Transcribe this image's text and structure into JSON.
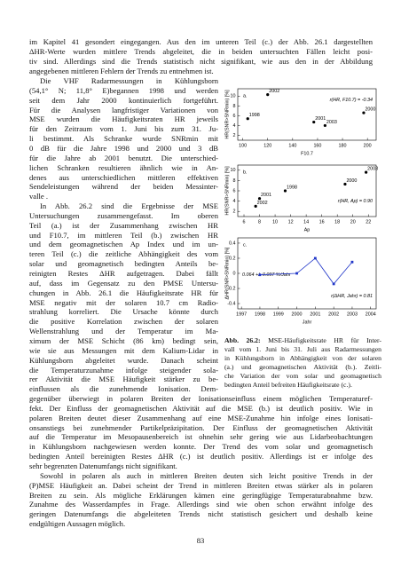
{
  "text": {
    "top": [
      [
        "im Kapitel 41 gesondert eingegangen. Aus den im unteren Teil (c.) der Abb. 26.1 dargestellten",
        "ΔHR-Werte wurden mittlere Trends abgeleitet, die in beiden untersuchten Fällen leicht posi-",
        "tiv sind. Allerdings sind die Trends statistisch nicht signifikant, wie aus den in der Abbildung",
        "angegebenen mittleren Fehlern der Trends zu entnehmen ist."
      ]
    ],
    "left": [
      [
        "Die VHF Radarmessungen in Kühlungsborn",
        "(54,1° N; 11,8° E)begannen 1998 und werden",
        "seit dem Jahr 2000 kontinuierlich fortgeführt.",
        "Für die Analysen langfristiger Variationen von",
        "MSE wurden die Häufigkeitsraten HR jeweils",
        "für den Zeitraum vom 1. Juni bis zum 31. Ju-",
        "li bestimmt. Als Schranke wurde SNRmin mit",
        "0 dB für die Jahre 1998 und 2000 und 3 dB",
        "für die Jahre ab 2001 benutzt. Die unterschied-",
        "lichen Schranken resultieren ähnlich wie in An-",
        "denes aus unterschiedlichen mittleren effektiven",
        "Sendeleistungen während der beiden Messinter-",
        "valle ."
      ],
      [
        "In Abb. 26.2 sind die Ergebnisse der MSE",
        "Untersuchungen zusammengefasst. Im oberen",
        "Teil (a.) ist der Zusammenhang zwischen HR",
        "und F10.7, im mittleren Teil (b.) zwischen HR",
        "und dem geomagnetischen Ap Index und im un-",
        "teren Teil (c.) die zeitliche Abhängigkeit des vom",
        "solar und geomagnetisch bedingten Anteils be-",
        "reinigten Restes ΔHR aufgetragen. Dabei fällt",
        "auf, dass im Gegensatz zu den PMSE Untersu-",
        "chungen in Abb. 26.1 die Häufigkeitsrate HR für",
        "MSE negativ mit der solaren 10.7 cm Radio-",
        "strahlung korreliert. Die Ursache könnte durch",
        "die positive Korrelation zwischen der solaren",
        "Wellenstrahlung und der Temperatur im Ma-",
        "ximum der MSE Schicht (86 km) bedingt sein,",
        "wie sie aus Messungen mit dem Kalium-Lidar in",
        "Kühlungsborn abgeleitet wurde. Danach scheint",
        "die Temperaturzunahme infolge steigender sola-",
        "rer Aktivität die MSE Häufigkeit stärker zu be-",
        "einflussen als die zunehmende Ionisation. Dem-"
      ]
    ],
    "bottom": [
      [
        "gegenüber überwiegt in polaren Breiten der Ionisationseinfluss einem möglichen Temperaturef-",
        "fekt. Der Einfluss der geomagnetischen Aktivität auf die MSE (b.) ist deutlich positiv. Wie in",
        "polaren Breiten deutet dieser Zusammenhang auf eine MSE-Zunahme hin infolge eines Ionisati-",
        "onsanstiegs bei zunehmender Partikelpräzipitation. Der Einfluss der geomagnetischen Aktivität",
        "auf die Temperatur im Mesopausenbereich ist ohnehin sehr gering wie aus Lidarbeobachtungen",
        "in Kühlungsborn nachgewiesen werden konnte. Der Trend des vom solar und geomagnetisch",
        "bedingten Anteil bereinigten Restes ΔHR (c.) ist deutlich positiv. Allerdings ist er infolge des",
        "sehr begrenzten Datenumfangs nicht signifikant."
      ],
      [
        "Sowohl in polaren als auch in mittleren Breiten deuten sich leicht positive Trends in der",
        "(P)MSE Häufigkeit an. Dabei scheint der Trend in mittleren Breiten etwas stärker als in polaren",
        "Breiten zu sein. Als mögliche Erklärungen kämen eine geringfügige Temperaturabnahme bzw.",
        "Zunahme des Wasserdampfes in Frage. Allerdings sind wie oben schon erwähnt infolge des",
        "geringen Datenumfangs die abgeleiteten Trends nicht statistisch gesichert und deshalb keine",
        "endgültigen Aussagen möglich."
      ]
    ]
  },
  "figure": {
    "charts": [
      {
        "type": "scatter",
        "panel": "a.",
        "ylabel": "HR(SNR>SNRmin) [%]",
        "xlabel": "F10.7",
        "annotations": [
          {
            "text": "r(HR, F10.7) = -0.34",
            "color": "#000000"
          }
        ],
        "x": [
          104,
          120,
          157,
          166,
          197
        ],
        "values": [
          5.4,
          10.3,
          4.7,
          4.0,
          6.6
        ],
        "point_labels": [
          "1998",
          "2002",
          "2001",
          "2003",
          "2000"
        ],
        "color": "#000000",
        "xlim": [
          96,
          207
        ],
        "xticks": [
          100,
          120,
          140,
          160,
          180,
          200
        ],
        "ylim": [
          1,
          11.5
        ],
        "yticks": [
          2,
          4,
          6,
          8,
          10
        ]
      },
      {
        "type": "scatter",
        "panel": "b.",
        "ylabel": "HR(SNR>SNRmin) [%]",
        "xlabel": "Ap",
        "annotations": [
          {
            "text": "r(HR, Ap) = 0.90",
            "color": "#000000"
          }
        ],
        "x": [
          21.7,
          19,
          11.3,
          8,
          7.5
        ],
        "values": [
          9.6,
          7.3,
          6,
          4.5,
          3
        ],
        "point_labels": [
          "2003",
          "2000",
          "1998",
          "2001",
          "2002"
        ],
        "color": "#000000",
        "xlim": [
          5.2,
          23
        ],
        "xticks": [
          6,
          8,
          10,
          12,
          14,
          16,
          18,
          20,
          22
        ],
        "ylim": [
          1,
          11
        ],
        "yticks": [
          2,
          4,
          6,
          8,
          10
        ]
      },
      {
        "type": "line",
        "panel": "c.",
        "ylabel": "ΔHR(SNR>SNRmin) [%]",
        "xlabel": "Jahr",
        "annotations": [
          {
            "text": "0.064 +/- 0.097 %/Jahr",
            "color": "#1f35c8"
          },
          {
            "text": "r(ΔHR, Jahr) = 0.81",
            "color": "#000000"
          }
        ],
        "x": [
          1998,
          2000,
          2001,
          2002,
          2003
        ],
        "values": [
          -0.02,
          0.0,
          0.2,
          -0.14,
          0.15
        ],
        "color": "#1f35c8",
        "xlim": [
          1996.8,
          2004.3
        ],
        "xticks": [
          1997,
          1998,
          1999,
          2000,
          2001,
          2002,
          2003,
          2004
        ],
        "ylim": [
          -0.47,
          0.47
        ],
        "yticks": [
          0.4,
          0.2,
          0,
          -0.2,
          -0.4
        ]
      }
    ],
    "caption_label": "Abb. 26.2:",
    "caption": [
      "MSE-Häufigkeitsrate HR für Inter-",
      "vall vom 1. Juni bis 31. Juli aus Radarmessungen",
      "in Kühlungsborn in Abhängigkeit von der solaren",
      "(a.) und geomagnetischen Aktivität (b.). Zeitli-",
      "che Variation der vom solar und geomagnetisch",
      "bedingten Anteil befreiten Häufigkeitsrate (c.)."
    ]
  },
  "page_number": "83"
}
